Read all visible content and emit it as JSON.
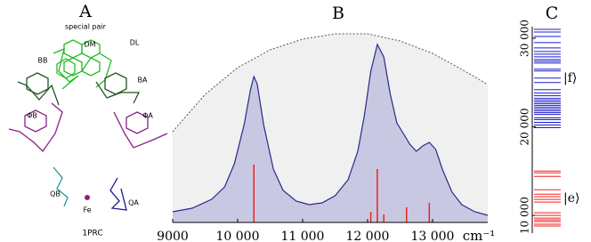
{
  "structure": {
    "label": "A",
    "subtitle": "special pair",
    "caption": "1PRC",
    "pigments": [
      "DM",
      "DL",
      "BB",
      "BA",
      "ΦB",
      "ΦA",
      "QB",
      "QA",
      "Fe"
    ]
  },
  "chart_data": [
    {
      "type": "spectrum",
      "title": "B",
      "xlabel": "cm⁻¹",
      "xlim": [
        9000,
        13850
      ],
      "ylim": [
        0,
        1.1
      ],
      "xticks": [
        9000,
        {
          "value": 10000,
          "label": "10 000"
        },
        {
          "value": 11000,
          "label": "11 000"
        },
        {
          "value": 12000,
          "label": "12 000"
        },
        {
          "value": 13000,
          "label": "13 000"
        }
      ],
      "envelope": {
        "color": "#555555",
        "x": [
          9000,
          9500,
          10000,
          10500,
          11000,
          11500,
          12000,
          12500,
          13000,
          13500,
          13850
        ],
        "values": [
          0.51,
          0.72,
          0.87,
          0.97,
          1.03,
          1.06,
          1.06,
          1.02,
          0.95,
          0.85,
          0.775
        ]
      },
      "spectrum": {
        "color": "#2a2a8c",
        "x": [
          9000,
          9300,
          9600,
          9800,
          9950,
          10100,
          10200,
          10250,
          10300,
          10400,
          10550,
          10700,
          10900,
          11100,
          11300,
          11500,
          11700,
          11850,
          11950,
          12050,
          12150,
          12250,
          12350,
          12450,
          12550,
          12650,
          12750,
          12850,
          12950,
          13050,
          13150,
          13300,
          13450,
          13650,
          13850
        ],
        "values": [
          0.06,
          0.08,
          0.13,
          0.2,
          0.33,
          0.55,
          0.75,
          0.82,
          0.78,
          0.55,
          0.3,
          0.18,
          0.12,
          0.1,
          0.11,
          0.15,
          0.24,
          0.4,
          0.6,
          0.85,
          1.0,
          0.93,
          0.72,
          0.56,
          0.5,
          0.44,
          0.4,
          0.43,
          0.45,
          0.41,
          0.3,
          0.17,
          0.1,
          0.06,
          0.04
        ]
      },
      "sticks": {
        "color": "#ee2222",
        "x": [
          10250,
          12050,
          12150,
          12250,
          12600,
          12950
        ],
        "values": [
          0.325,
          0.06,
          0.3,
          0.045,
          0.085,
          0.11
        ]
      }
    },
    {
      "type": "eventplot",
      "title": "C",
      "ylim": [
        8000,
        31300
      ],
      "yticks": [
        {
          "value": 10000,
          "label": "10 000"
        },
        {
          "value": 20000,
          "label": "20 000"
        },
        {
          "value": 30000,
          "label": "30 000"
        }
      ],
      "series": [
        {
          "name": "|f⟩",
          "color": "#1a1acc",
          "values": [
            31000,
            30700,
            30200,
            29500,
            28900,
            28500,
            28200,
            27900,
            27600,
            27400,
            27200,
            26500,
            26300,
            25500,
            25000,
            24200,
            23800,
            23500,
            23200,
            23000,
            22800,
            22600,
            22400,
            22200,
            22000,
            21800,
            21600,
            21400,
            21000,
            20800,
            20500,
            20200,
            19900
          ]
        },
        {
          "name": "|e⟩",
          "color": "#ee2222",
          "values": [
            15000,
            14800,
            14400,
            12900,
            12400,
            12100,
            11800,
            11500,
            10300,
            10000,
            9700,
            9500,
            9300,
            9000,
            8800
          ]
        }
      ]
    }
  ]
}
